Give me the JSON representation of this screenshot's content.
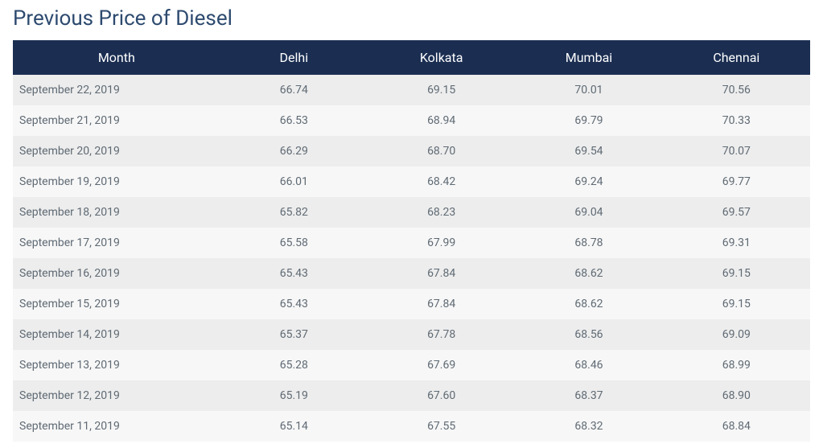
{
  "title": "Previous Price of Diesel",
  "title_color": "#2d4a6f",
  "table": {
    "header_bg": "#1b2e52",
    "header_text_color": "#ffffff",
    "row_stripe_odd": "#ededed",
    "row_stripe_even": "#f7f7f7",
    "body_text_color": "#5f6a74",
    "columns": [
      "Month",
      "Delhi",
      "Kolkata",
      "Mumbai",
      "Chennai"
    ],
    "rows": [
      [
        "September 22, 2019",
        "66.74",
        "69.15",
        "70.01",
        "70.56"
      ],
      [
        "September 21, 2019",
        "66.53",
        "68.94",
        "69.79",
        "70.33"
      ],
      [
        "September 20, 2019",
        "66.29",
        "68.70",
        "69.54",
        "70.07"
      ],
      [
        "September 19, 2019",
        "66.01",
        "68.42",
        "69.24",
        "69.77"
      ],
      [
        "September 18, 2019",
        "65.82",
        "68.23",
        "69.04",
        "69.57"
      ],
      [
        "September 17, 2019",
        "65.58",
        "67.99",
        "68.78",
        "69.31"
      ],
      [
        "September 16, 2019",
        "65.43",
        "67.84",
        "68.62",
        "69.15"
      ],
      [
        "September 15, 2019",
        "65.43",
        "67.84",
        "68.62",
        "69.15"
      ],
      [
        "September 14, 2019",
        "65.37",
        "67.78",
        "68.56",
        "69.09"
      ],
      [
        "September 13, 2019",
        "65.28",
        "67.69",
        "68.46",
        "68.99"
      ],
      [
        "September 12, 2019",
        "65.19",
        "67.60",
        "68.37",
        "68.90"
      ],
      [
        "September 11, 2019",
        "65.14",
        "67.55",
        "68.32",
        "68.84"
      ]
    ]
  }
}
